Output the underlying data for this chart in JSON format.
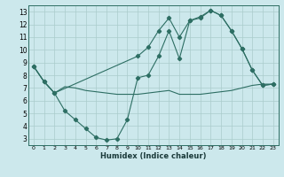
{
  "xlabel": "Humidex (Indice chaleur)",
  "xlim": [
    -0.5,
    23.5
  ],
  "ylim": [
    2.5,
    13.5
  ],
  "xticks": [
    0,
    1,
    2,
    3,
    4,
    5,
    6,
    7,
    8,
    9,
    10,
    11,
    12,
    13,
    14,
    15,
    16,
    17,
    18,
    19,
    20,
    21,
    22,
    23
  ],
  "yticks": [
    3,
    4,
    5,
    6,
    7,
    8,
    9,
    10,
    11,
    12,
    13
  ],
  "bg_color": "#cce8ec",
  "line_color": "#2d6e63",
  "grid_color": "#aacccc",
  "line1_x": [
    0,
    1,
    2,
    3,
    4,
    5,
    6,
    7,
    8,
    9,
    10,
    11,
    12,
    13,
    14,
    15,
    16,
    17,
    18,
    19,
    20,
    21,
    22,
    23
  ],
  "line1_y": [
    8.7,
    7.5,
    6.6,
    5.2,
    4.5,
    3.8,
    3.1,
    2.9,
    3.0,
    4.5,
    7.8,
    8.0,
    9.5,
    11.5,
    9.3,
    12.3,
    12.5,
    13.1,
    12.7,
    11.5,
    10.1,
    8.4,
    7.2,
    7.3
  ],
  "line2_x": [
    0,
    1,
    2,
    3,
    4,
    5,
    6,
    7,
    8,
    9,
    10,
    11,
    12,
    13,
    14,
    15,
    16,
    17,
    18,
    19,
    20,
    21,
    22,
    23
  ],
  "line2_y": [
    8.7,
    7.5,
    6.6,
    7.1,
    7.0,
    6.8,
    6.7,
    6.6,
    6.5,
    6.5,
    6.5,
    6.6,
    6.7,
    6.8,
    6.5,
    6.5,
    6.5,
    6.6,
    6.7,
    6.8,
    7.0,
    7.2,
    7.3,
    7.3
  ],
  "line3_x": [
    0,
    1,
    2,
    10,
    11,
    12,
    13,
    14,
    15,
    16,
    17,
    18,
    19,
    20,
    21,
    22,
    23
  ],
  "line3_y": [
    8.7,
    7.5,
    6.6,
    9.5,
    10.2,
    11.5,
    12.5,
    11.0,
    12.3,
    12.6,
    13.1,
    12.7,
    11.5,
    10.1,
    8.4,
    7.2,
    7.3
  ]
}
